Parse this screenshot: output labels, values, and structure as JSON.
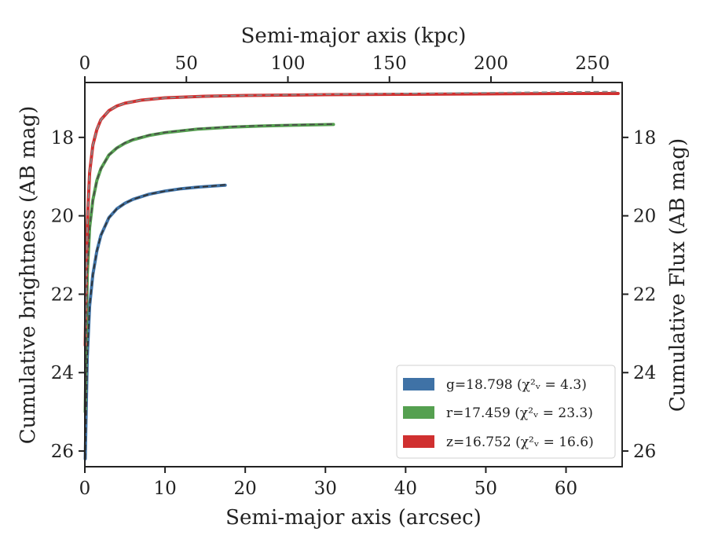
{
  "chart_data": {
    "type": "line",
    "xlabel_bottom": "Semi-major axis (arcsec)",
    "xlabel_top": "Semi-major axis (kpc)",
    "ylabel_left": "Cumulative brightness (AB mag)",
    "ylabel_right": "Cumulative Flux (AB mag)",
    "xlim": [
      0,
      67
    ],
    "ylim": [
      26.4,
      16.6
    ],
    "y_inverted": true,
    "top_xlim": [
      0,
      264.6
    ],
    "x_ticks": [
      0,
      10,
      20,
      30,
      40,
      50,
      60
    ],
    "x_tick_labels": [
      "0",
      "10",
      "20",
      "30",
      "40",
      "50",
      "60"
    ],
    "top_x_ticks": [
      0,
      50,
      100,
      150,
      200,
      250
    ],
    "top_x_tick_labels": [
      "0",
      "50",
      "100",
      "150",
      "200",
      "250"
    ],
    "y_ticks": [
      18,
      20,
      22,
      24,
      26
    ],
    "y_tick_labels": [
      "18",
      "20",
      "22",
      "24",
      "26"
    ],
    "grid": false,
    "legend_position": "lower-right",
    "series": [
      {
        "name": "g",
        "legend_label": "g=18.798",
        "legend_chi": "(χ²ᵥ = 4.3)",
        "color": "#3f72a6",
        "model_color": "#2b2b2b",
        "x": [
          0.05,
          0.3,
          0.6,
          1.0,
          1.5,
          2.0,
          3.0,
          4.0,
          5.0,
          6.0,
          8.0,
          10.0,
          12.0,
          14.0,
          16.0,
          17.5
        ],
        "y": [
          26.2,
          23.6,
          22.3,
          21.5,
          20.9,
          20.5,
          20.05,
          19.82,
          19.68,
          19.58,
          19.45,
          19.37,
          19.31,
          19.27,
          19.24,
          19.22
        ]
      },
      {
        "name": "r",
        "legend_label": "r=17.459",
        "legend_chi": "(χ²ᵥ = 23.3)",
        "color": "#55a050",
        "model_color": "#2b2b2b",
        "x": [
          0.05,
          0.3,
          0.6,
          1.0,
          1.5,
          2.0,
          3.0,
          4.0,
          5.0,
          6.0,
          8.0,
          10.0,
          14.0,
          18.0,
          22.0,
          26.0,
          31.0
        ],
        "y": [
          25.0,
          21.5,
          20.3,
          19.6,
          19.1,
          18.8,
          18.45,
          18.27,
          18.15,
          18.06,
          17.95,
          17.88,
          17.79,
          17.74,
          17.71,
          17.69,
          17.67
        ]
      },
      {
        "name": "z",
        "legend_label": "z=16.752",
        "legend_chi": "(χ²ᵥ = 16.6)",
        "color": "#d03030",
        "model_color": "#2b2b2b",
        "x": [
          0.05,
          0.3,
          0.6,
          1.0,
          1.5,
          2.0,
          3.0,
          4.0,
          5.0,
          7.0,
          10.0,
          15.0,
          20.0,
          30.0,
          40.0,
          50.0,
          60.0,
          66.5
        ],
        "y": [
          23.3,
          20.2,
          18.9,
          18.2,
          17.8,
          17.55,
          17.32,
          17.2,
          17.13,
          17.05,
          16.99,
          16.95,
          16.93,
          16.91,
          16.9,
          16.89,
          16.88,
          16.88
        ]
      }
    ],
    "models": [
      {
        "name": "r-model",
        "x": [
          0.05,
          0.3,
          0.6,
          1.0,
          1.5,
          2.0,
          3.0,
          4.0,
          5.0,
          6.0,
          8.0,
          10.0,
          14.0,
          18.0,
          22.0,
          26.0,
          31.0
        ],
        "y": [
          25.0,
          21.5,
          20.3,
          19.6,
          19.1,
          18.8,
          18.45,
          18.27,
          18.14,
          18.05,
          17.94,
          17.87,
          17.78,
          17.73,
          17.7,
          17.68,
          17.66
        ]
      },
      {
        "name": "z-model",
        "x": [
          0.05,
          0.3,
          0.6,
          1.0,
          1.5,
          2.0,
          3.0,
          4.0,
          5.0,
          7.0,
          10.0,
          15.0,
          20.0,
          30.0,
          40.0,
          50.0,
          60.0,
          66.5
        ],
        "y": [
          23.3,
          20.2,
          18.9,
          18.2,
          17.8,
          17.55,
          17.32,
          17.2,
          17.13,
          17.05,
          16.99,
          16.95,
          16.93,
          16.9,
          16.88,
          16.86,
          16.84,
          16.83
        ]
      },
      {
        "name": "g-model",
        "x": [
          0.05,
          0.3,
          0.6,
          1.0,
          1.5,
          2.0,
          3.0,
          4.0,
          5.0,
          6.0,
          8.0,
          10.0,
          12.0,
          14.0,
          16.0,
          17.5
        ],
        "y": [
          26.2,
          23.6,
          22.3,
          21.5,
          20.9,
          20.5,
          20.05,
          19.82,
          19.68,
          19.58,
          19.45,
          19.37,
          19.31,
          19.27,
          19.24,
          19.21
        ]
      }
    ]
  }
}
